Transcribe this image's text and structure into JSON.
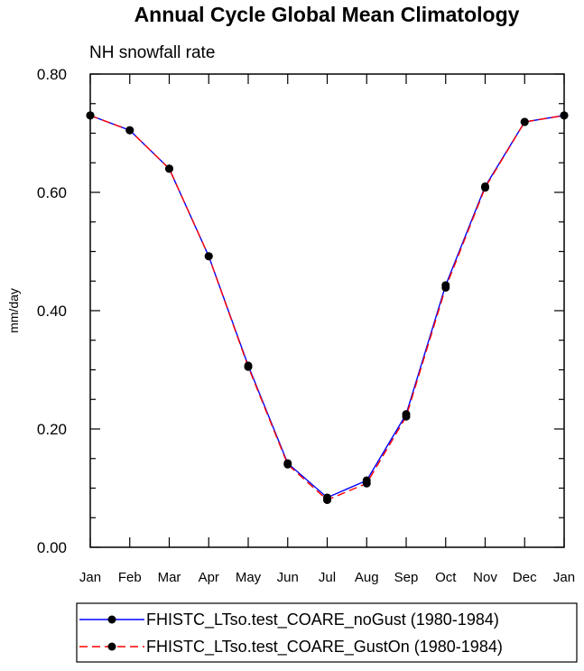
{
  "chart_data": {
    "type": "line",
    "title": "Annual Cycle Global Mean Climatology",
    "subtitle": "NH snowfall rate",
    "xlabel": "",
    "ylabel": "mm/day",
    "ylim": [
      0.0,
      0.8
    ],
    "yticks": [
      "0.00",
      "0.20",
      "0.40",
      "0.60",
      "0.80"
    ],
    "categories": [
      "Jan",
      "Feb",
      "Mar",
      "Apr",
      "May",
      "Jun",
      "Jul",
      "Aug",
      "Sep",
      "Oct",
      "Nov",
      "Dec",
      "Jan"
    ],
    "series": [
      {
        "name": "FHISTC_LTso.test_COARE_noGust (1980-1984)",
        "color": "#0000ff",
        "dash": "solid",
        "values": [
          0.73,
          0.705,
          0.64,
          0.492,
          0.307,
          0.142,
          0.084,
          0.113,
          0.225,
          0.443,
          0.61,
          0.719,
          0.73
        ]
      },
      {
        "name": "FHISTC_LTso.test_COARE_GustOn (1980-1984)",
        "color": "#ff0000",
        "dash": "dashed",
        "values": [
          0.73,
          0.705,
          0.64,
          0.492,
          0.305,
          0.14,
          0.08,
          0.108,
          0.221,
          0.439,
          0.608,
          0.719,
          0.73
        ]
      }
    ],
    "grid": false,
    "legend_position": "bottom"
  }
}
